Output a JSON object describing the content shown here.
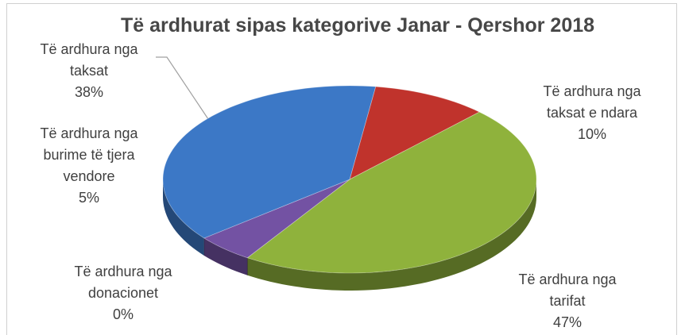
{
  "chart_data": {
    "type": "pie",
    "title": "Të ardhurat sipas kategorive Janar - Qershor 2018",
    "categories": [
      "Të ardhura nga taksat e ndara",
      "Të ardhura nga tarifat",
      "Të ardhura nga donacionet",
      "Të ardhura nga burime të tjera vendore",
      "Të ardhura nga taksat"
    ],
    "values": [
      10,
      47,
      0,
      5,
      38
    ],
    "value_labels": [
      "10%",
      "47%",
      "0%",
      "5%",
      "38%"
    ],
    "colors": [
      "#c0332c",
      "#8fb23c",
      "#4a6a9c",
      "#7352a3",
      "#3c78c6"
    ]
  }
}
